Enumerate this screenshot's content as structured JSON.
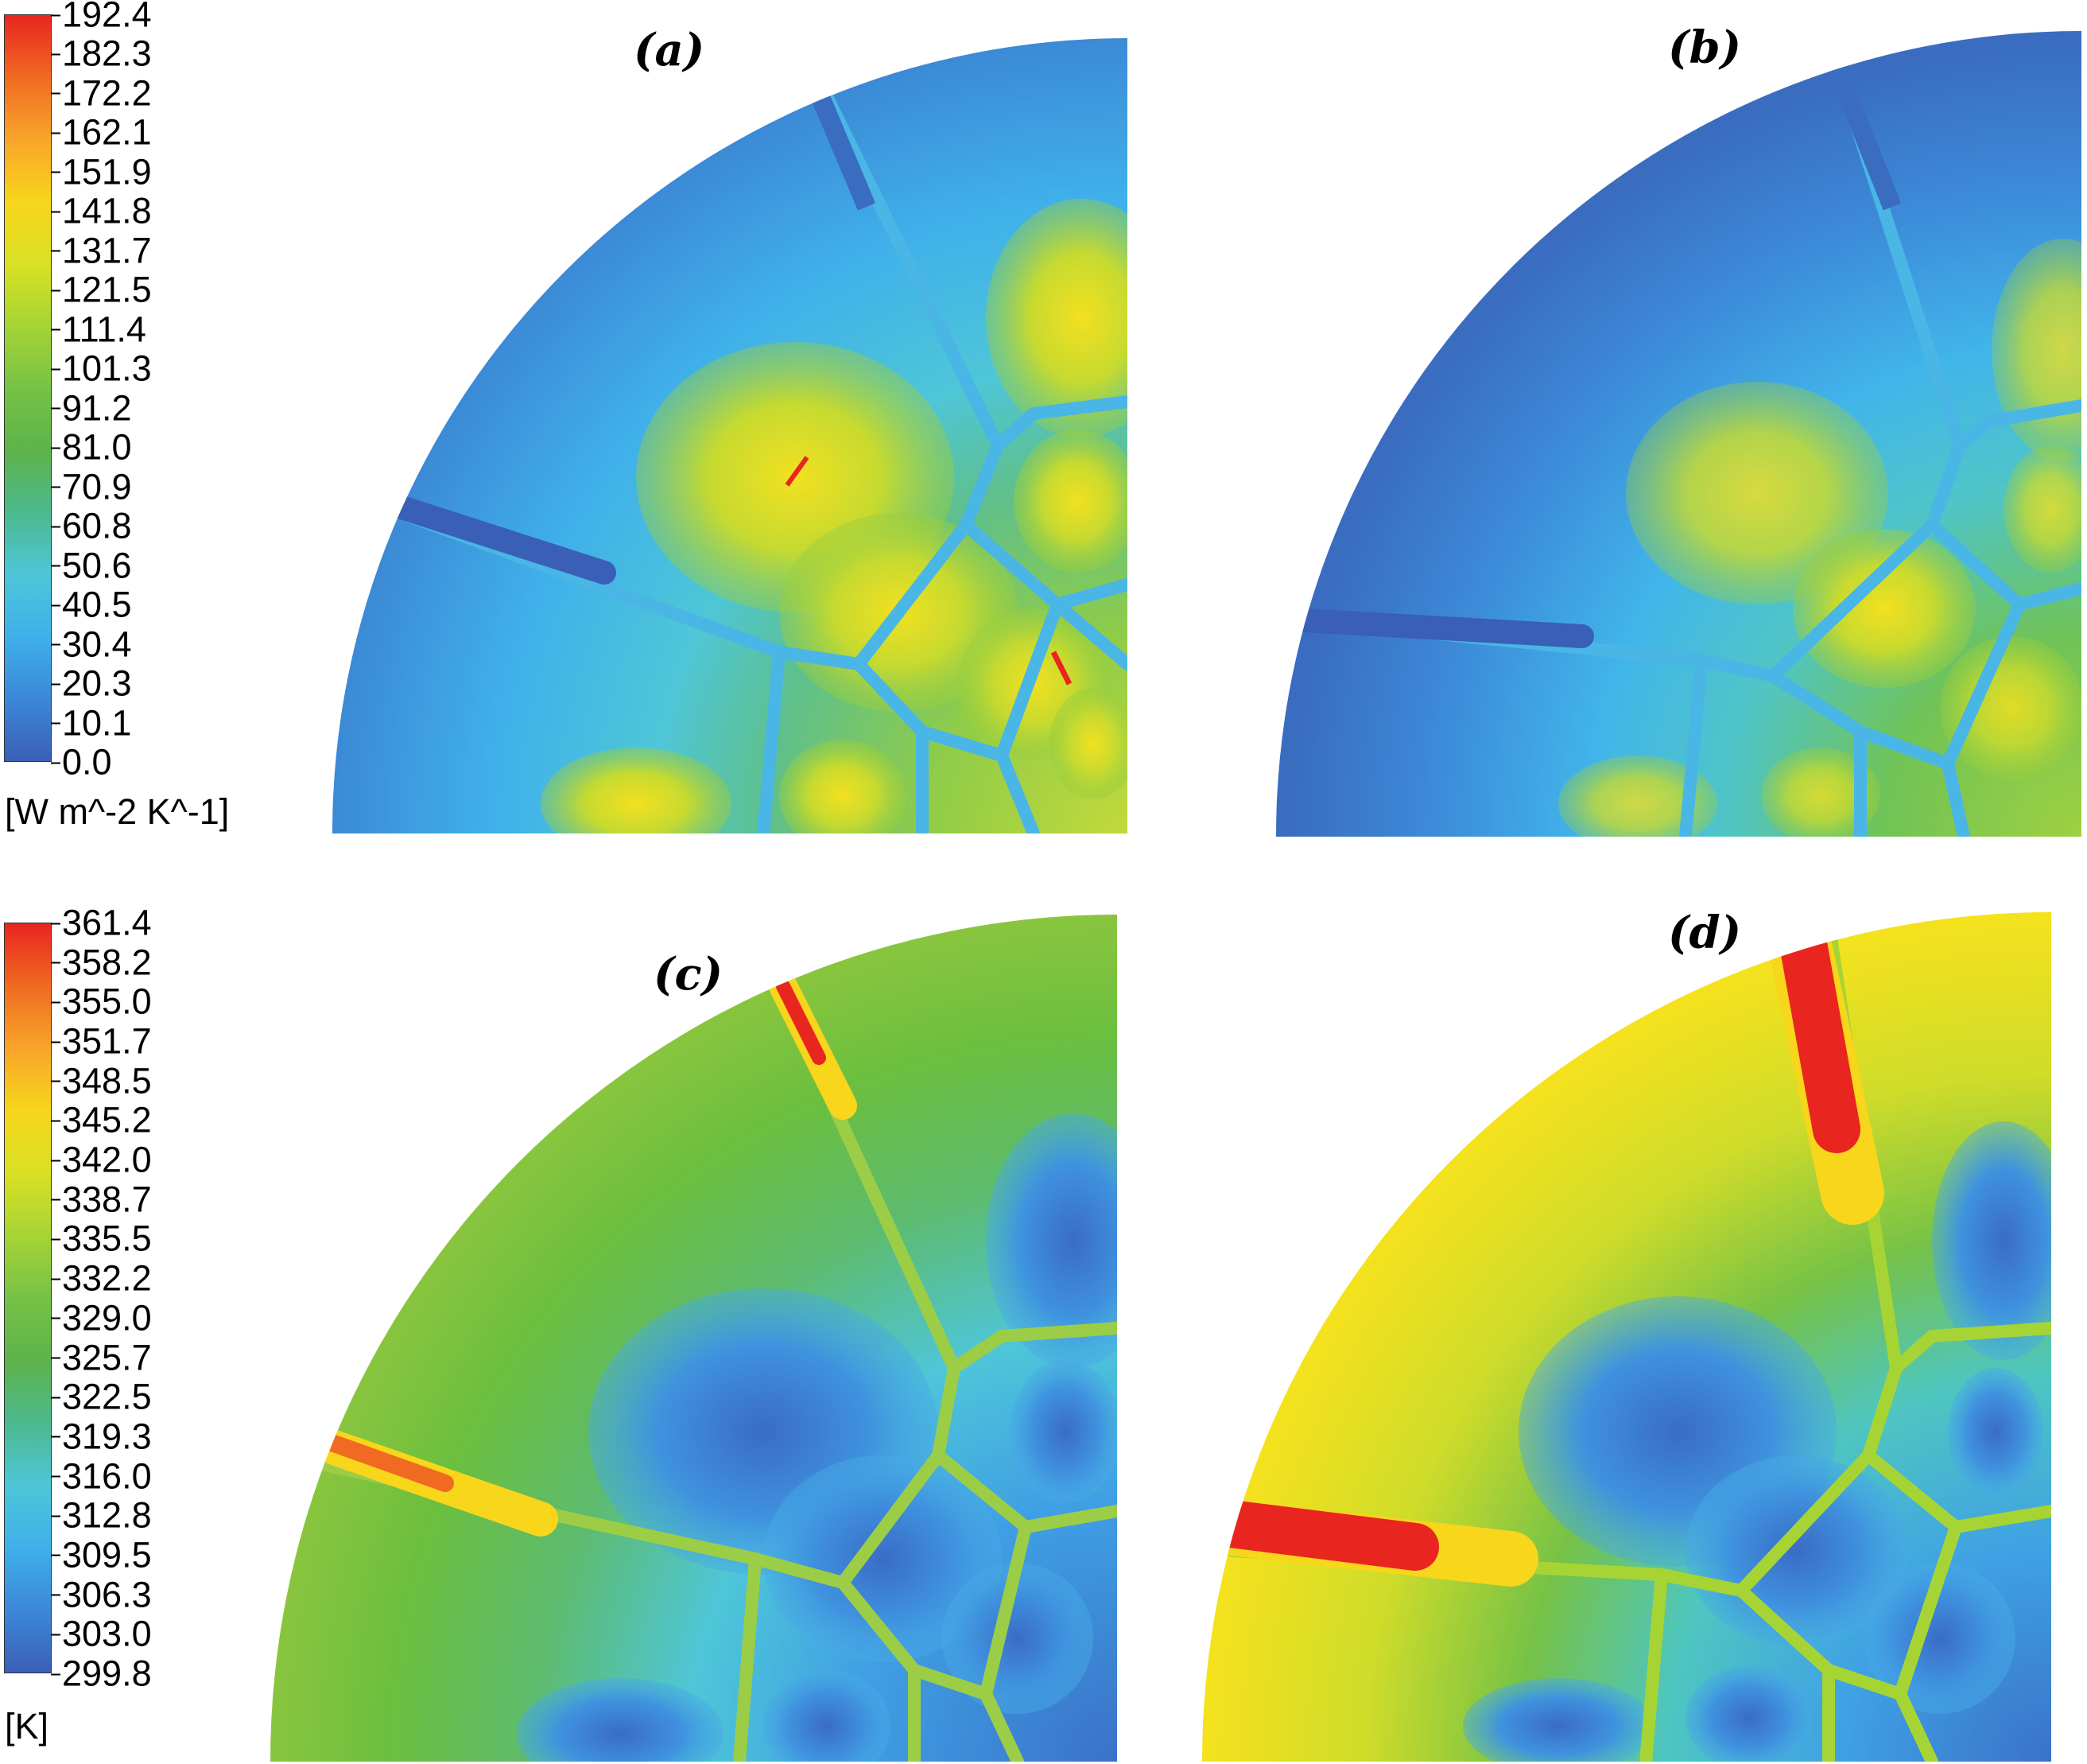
{
  "colorbars": [
    {
      "name": "heat-transfer-coefficient",
      "ticks": [
        "192.4",
        "182.3",
        "172.2",
        "162.1",
        "151.9",
        "141.8",
        "131.7",
        "121.5",
        "111.4",
        "101.3",
        "91.2",
        "81.0",
        "70.9",
        "60.8",
        "50.6",
        "40.5",
        "30.4",
        "20.3",
        "10.1",
        "0.0"
      ],
      "unit": "[W m^-2 K^-1]",
      "range": [
        0.0,
        192.4
      ],
      "colors": [
        "#e8251f",
        "#f06a22",
        "#f8a52a",
        "#f7d61c",
        "#d9e024",
        "#a6d435",
        "#76c246",
        "#5db34a",
        "#4cb98e",
        "#4ec6d8",
        "#3fb0ea",
        "#3c88d8",
        "#3a5fb6"
      ]
    },
    {
      "name": "temperature",
      "ticks": [
        "361.4",
        "358.2",
        "355.0",
        "351.7",
        "348.5",
        "345.2",
        "342.0",
        "338.7",
        "335.5",
        "332.2",
        "329.0",
        "325.7",
        "322.5",
        "319.3",
        "316.0",
        "312.8",
        "309.5",
        "306.3",
        "303.0",
        "299.8"
      ],
      "unit": "[K]",
      "range": [
        299.8,
        361.4
      ],
      "colors": [
        "#e8251f",
        "#f06a22",
        "#f8a52a",
        "#f7d61c",
        "#d9e024",
        "#a6d435",
        "#76c246",
        "#5db34a",
        "#4cb98e",
        "#4ec6d8",
        "#3fb0ea",
        "#3c88d8",
        "#3a5fb6"
      ]
    }
  ],
  "panels": [
    {
      "id": "a",
      "label": "(a)"
    },
    {
      "id": "b",
      "label": "(b)"
    },
    {
      "id": "c",
      "label": "(c)"
    },
    {
      "id": "d",
      "label": "(d)"
    }
  ]
}
